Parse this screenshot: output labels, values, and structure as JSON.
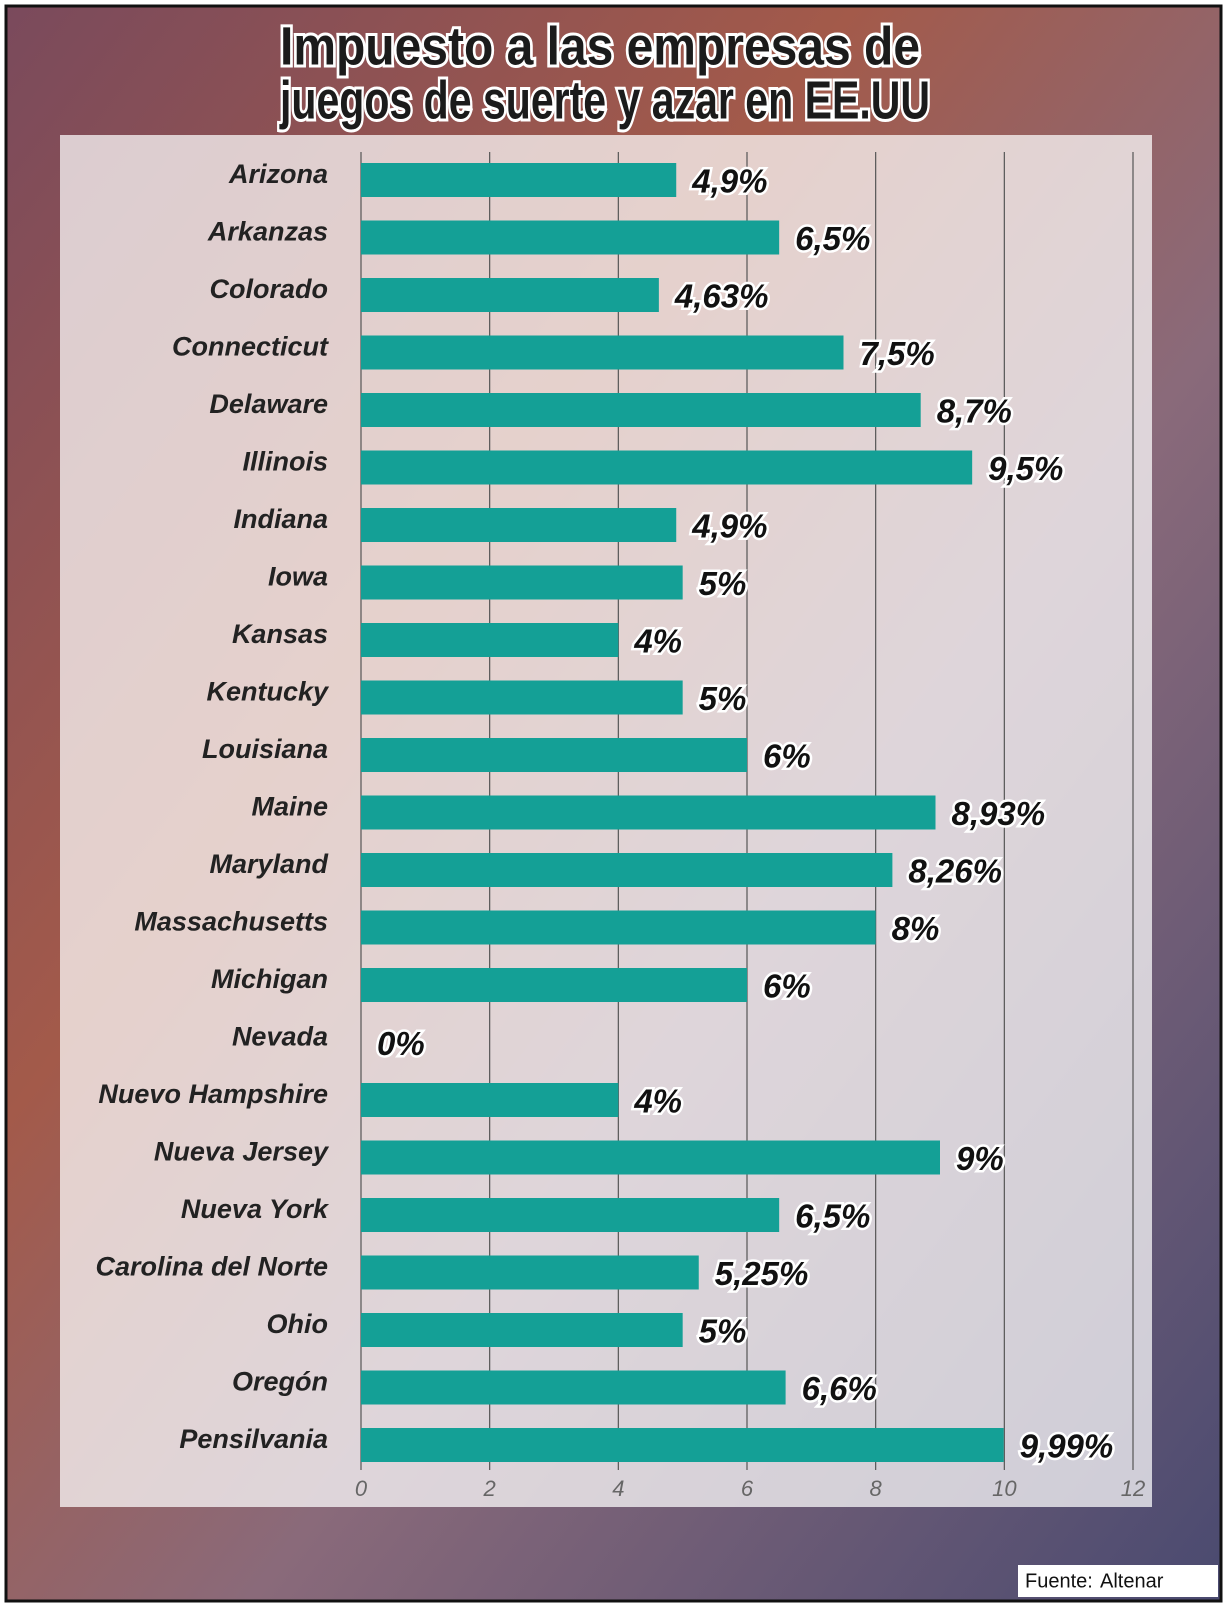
{
  "chart_data": {
    "type": "bar",
    "orientation": "horizontal",
    "title": [
      "Impuesto a las empresas de",
      "juegos de suerte y azar en EE.UU"
    ],
    "categories": [
      "Arizona",
      "Arkanzas",
      "Colorado",
      "Connecticut",
      "Delaware",
      "Illinois",
      "Indiana",
      "Iowa",
      "Kansas",
      "Kentucky",
      "Louisiana",
      "Maine",
      "Maryland",
      "Massachusetts",
      "Michigan",
      "Nevada",
      "Nuevo Hampshire",
      "Nueva Jersey",
      "Nueva York",
      "Carolina del Norte",
      "Ohio",
      "Oregón",
      "Pensilvania"
    ],
    "values": [
      4.9,
      6.5,
      4.63,
      7.5,
      8.7,
      9.5,
      4.9,
      5,
      4,
      5,
      6,
      8.93,
      8.26,
      8,
      6,
      0,
      4,
      9,
      6.5,
      5.25,
      5,
      6.6,
      9.99
    ],
    "value_labels": [
      "4,9%",
      "6,5%",
      "4,63%",
      "7,5%",
      "8,7%",
      "9,5%",
      "4,9%",
      "5%",
      "4%",
      "5%",
      "6%",
      "8,93%",
      "8,26%",
      "8%",
      "6%",
      "0%",
      "4%",
      "9%",
      "6,5%",
      "5,25%",
      "5%",
      "6,6%",
      "9,99%"
    ],
    "color": "#14a096",
    "xlim": [
      0,
      12
    ],
    "xticks": [
      0,
      2,
      4,
      6,
      8,
      10,
      12
    ],
    "grid": true,
    "source_label": "Fuente:",
    "source": "Altenar"
  }
}
